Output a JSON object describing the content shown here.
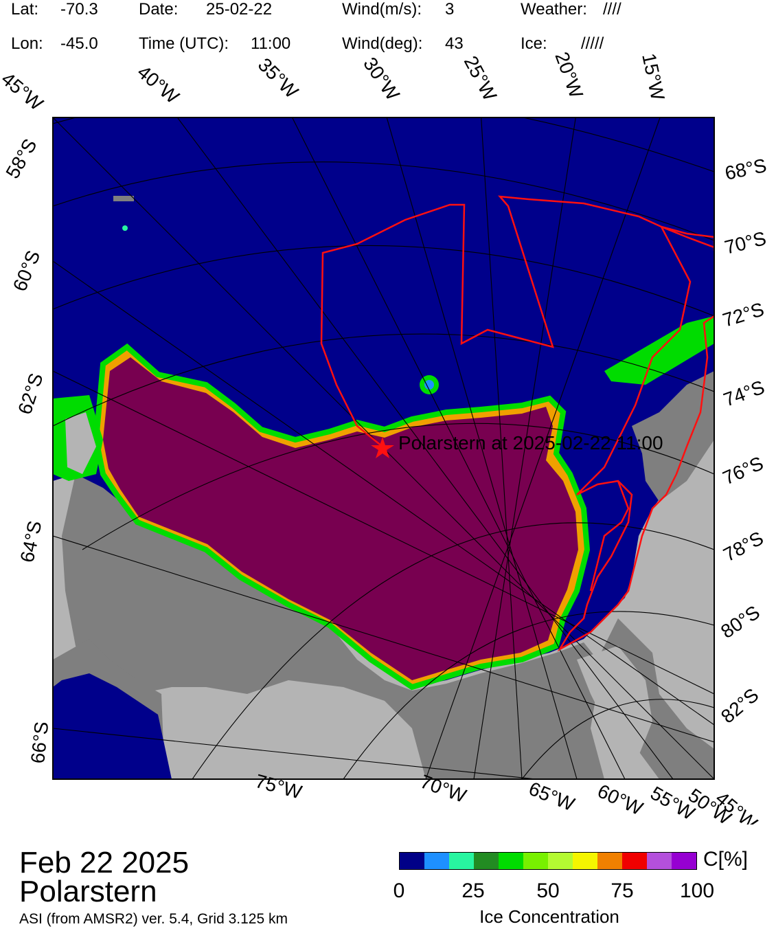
{
  "header": {
    "lat_label": "Lat:",
    "lat_value": "-70.3",
    "lon_label": "Lon:",
    "lon_value": "-45.0",
    "date_label": "Date:",
    "date_value": "25-02-22",
    "time_label": "Time (UTC):",
    "time_value": "11:00",
    "wind_speed_label": "Wind(m/s):",
    "wind_speed_value": "3",
    "wind_dir_label": "Wind(deg):",
    "wind_dir_value": "43",
    "weather_label": "Weather:",
    "weather_value": "////",
    "ice_label": "Ice:",
    "ice_value": "/////"
  },
  "map": {
    "top_lon_labels": [
      "45°W",
      "40°W",
      "35°W",
      "30°W",
      "25°W",
      "20°W",
      "15°W"
    ],
    "bottom_lon_labels": [
      "75°W",
      "70°W",
      "65°W",
      "60°W",
      "55°W",
      "50°W",
      "45°W"
    ],
    "left_lat_labels": [
      "58°S",
      "60°S",
      "62°S",
      "64°S",
      "66°S"
    ],
    "right_lat_labels": [
      "68°S",
      "70°S",
      "72°S",
      "74°S",
      "76°S",
      "78°S",
      "80°S",
      "82°S"
    ],
    "ship_label": "Polarstern at 2025-02-22  11:00",
    "colors": {
      "ocean": "#00008b",
      "ice_shelf": "#b4b4b4",
      "land": "#7f7f7f",
      "pack_ice": "#780050",
      "track": "#ff1010",
      "ship_marker": "#ff1010"
    }
  },
  "footer": {
    "date": "Feb 22 2025",
    "ship": "Polarstern",
    "product": "ASI (from AMSR2) ver. 5.4,  Grid 3.125 km"
  },
  "colorbar": {
    "unit": "C[%]",
    "title": "Ice Concentration",
    "ticks": [
      "0",
      "25",
      "50",
      "75",
      "100"
    ],
    "colors": [
      "#000087",
      "#1e90ff",
      "#28f5a0",
      "#228b22",
      "#00dc00",
      "#78f000",
      "#b4fa32",
      "#f5f500",
      "#f08000",
      "#f00000",
      "#b450dc",
      "#9600d2"
    ]
  }
}
